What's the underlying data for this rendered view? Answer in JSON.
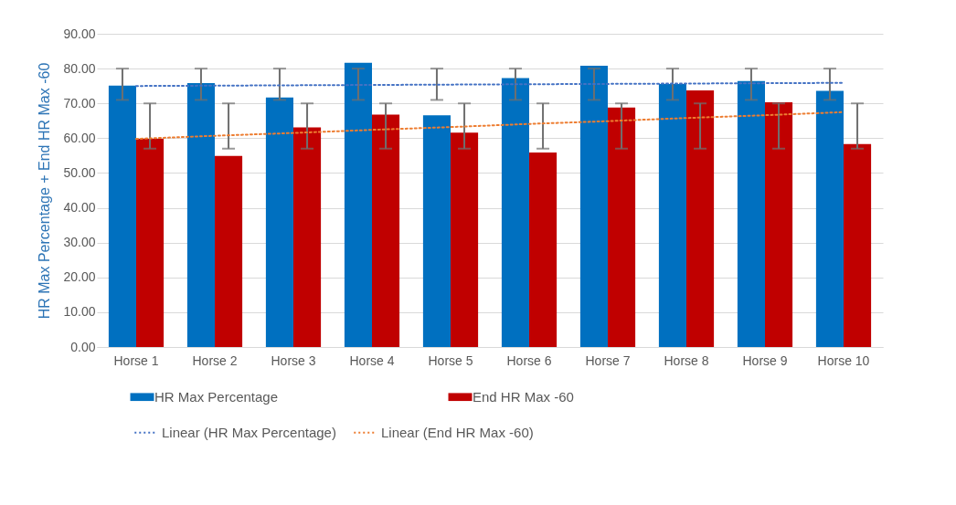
{
  "chart_data": {
    "type": "bar",
    "ylabel": "HR Max Percentage + End HR Max -60",
    "categories": [
      "Horse 1",
      "Horse 2",
      "Horse 3",
      "Horse 4",
      "Horse 5",
      "Horse 6",
      "Horse 7",
      "Horse 8",
      "Horse 9",
      "Horse 10"
    ],
    "series": [
      {
        "name": "HR Max Percentage",
        "type": "bar",
        "color": "#0070c0",
        "values": [
          75.1,
          75.8,
          71.7,
          81.7,
          66.6,
          77.3,
          80.8,
          75.6,
          76.4,
          73.6
        ],
        "errors": [
          [
            71,
            80
          ],
          [
            71,
            80
          ],
          [
            71,
            80
          ],
          [
            71,
            80
          ],
          [
            71,
            80
          ],
          [
            71,
            80
          ],
          [
            71,
            80
          ],
          [
            71,
            80
          ],
          [
            71,
            80
          ],
          [
            71,
            80
          ]
        ]
      },
      {
        "name": "End HR Max -60",
        "type": "bar",
        "color": "#c00000",
        "values": [
          59.8,
          54.9,
          63.1,
          66.8,
          61.6,
          55.9,
          68.8,
          73.7,
          70.3,
          58.3
        ],
        "errors": [
          [
            57,
            70
          ],
          [
            57,
            70
          ],
          [
            57,
            70
          ],
          [
            57,
            70
          ],
          [
            57,
            70
          ],
          [
            57,
            70
          ],
          [
            57,
            70
          ],
          [
            57,
            70
          ],
          [
            57,
            70
          ],
          [
            57,
            70
          ]
        ]
      },
      {
        "name": "Linear  (HR Max Percentage)",
        "type": "line",
        "line_style": "dotted",
        "color": "#4472c4",
        "values": [
          75.0,
          75.1,
          75.2,
          75.3,
          75.4,
          75.5,
          75.6,
          75.7,
          75.8,
          75.9
        ]
      },
      {
        "name": "Linear  (End HR Max -60)",
        "type": "line",
        "line_style": "dotted",
        "color": "#ed7d31",
        "values": [
          59.8,
          60.7,
          61.5,
          62.4,
          63.2,
          64.1,
          64.9,
          65.8,
          66.6,
          67.5
        ]
      }
    ],
    "ylim": [
      0,
      90
    ],
    "yticks": [
      {
        "value": 0,
        "label": "0.00"
      },
      {
        "value": 10,
        "label": "10.00"
      },
      {
        "value": 20,
        "label": "20.00"
      },
      {
        "value": 30,
        "label": "30.00"
      },
      {
        "value": 40,
        "label": "40.00"
      },
      {
        "value": 50,
        "label": "50.00"
      },
      {
        "value": 60,
        "label": "60.00"
      },
      {
        "value": 70,
        "label": "70.00"
      },
      {
        "value": 80,
        "label": "80.00"
      },
      {
        "value": 90,
        "label": "90.00"
      }
    ],
    "grid": "y",
    "legend": "bottom"
  }
}
